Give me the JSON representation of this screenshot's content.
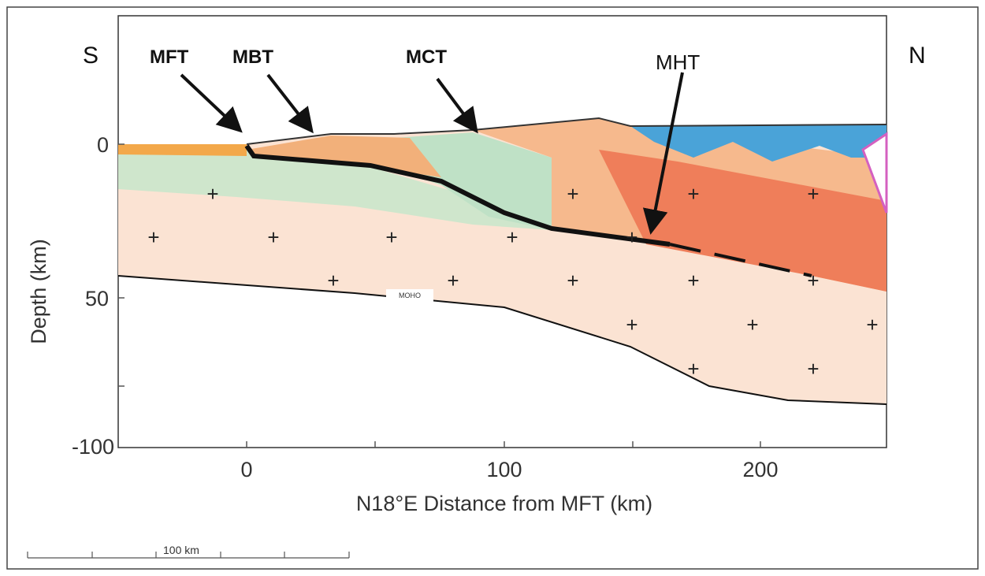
{
  "labels": {
    "south": "S",
    "north": "N",
    "mft": "MFT",
    "mbt": "MBT",
    "mct": "MCT",
    "mht": "MHT",
    "moho": "MOHO"
  },
  "axes": {
    "y_label": "Depth (km)",
    "x_label": "N18°E Distance from MFT (km)",
    "y_ticks": [
      "0",
      "50",
      "-100"
    ],
    "x_ticks": [
      "0",
      "100",
      "200"
    ]
  },
  "scale_bar": "100 km"
}
